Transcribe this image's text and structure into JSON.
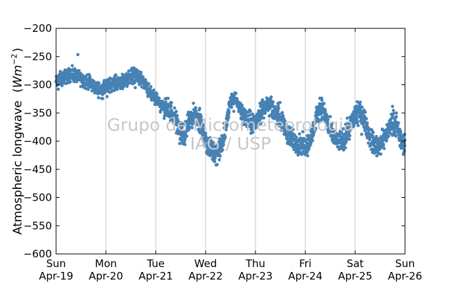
{
  "chart_data": {
    "type": "scatter",
    "title": "",
    "ylabel": "Atmospheric longwave",
    "ylabel_unit_prefix": "(",
    "ylabel_unit_base": "Wm",
    "ylabel_unit_exp": "−2",
    "ylabel_unit_suffix": ")",
    "ylim": [
      -600,
      -200
    ],
    "yticks": [
      "−200",
      "−250",
      "−300",
      "−350",
      "−400",
      "−450",
      "−500",
      "−550",
      "−600"
    ],
    "ytick_values": [
      -200,
      -250,
      -300,
      -350,
      -400,
      -450,
      -500,
      -550,
      -600
    ],
    "x_range": [
      "2015-04-19",
      "2015-04-26"
    ],
    "xticks": [
      {
        "day": "Sun",
        "date": "Apr-19"
      },
      {
        "day": "Mon",
        "date": "Apr-20"
      },
      {
        "day": "Tue",
        "date": "Apr-21"
      },
      {
        "day": "Wed",
        "date": "Apr-22"
      },
      {
        "day": "Thu",
        "date": "Apr-23"
      },
      {
        "day": "Fri",
        "date": "Apr-24"
      },
      {
        "day": "Sat",
        "date": "Apr-25"
      },
      {
        "day": "Sun",
        "date": "Apr-26"
      }
    ],
    "grid": "vertical",
    "marker_color": "#4682b4",
    "series": [
      {
        "hourly_values": [
          [
            -295,
            -292,
            -290,
            -288,
            -286,
            -285,
            -284,
            -283,
            -282,
            -283,
            -285,
            -287,
            -289,
            -291,
            -293,
            -295,
            -297,
            -300,
            -302,
            -305,
            -307,
            -308,
            -308,
            -307
          ],
          [
            -305,
            -302,
            -300,
            -298,
            -297,
            -296,
            -295,
            -294,
            -293,
            -291,
            -289,
            -286,
            -284,
            -282,
            -282,
            -284,
            -287,
            -291,
            -296,
            -302,
            -308,
            -313,
            -318,
            -322
          ],
          [
            -325,
            -330,
            -334,
            -338,
            -340,
            -342,
            -344,
            -346,
            -350,
            -358,
            -368,
            -378,
            -385,
            -388,
            -385,
            -378,
            -368,
            -360,
            -355,
            -353,
            -355,
            -362,
            -375,
            -390
          ],
          [
            -400,
            -408,
            -413,
            -416,
            -418,
            -420,
            -418,
            -414,
            -405,
            -390,
            -370,
            -348,
            -332,
            -325,
            -325,
            -330,
            -338,
            -346,
            -352,
            -358,
            -363,
            -366,
            -368,
            -368
          ],
          [
            -366,
            -360,
            -352,
            -345,
            -340,
            -338,
            -338,
            -340,
            -343,
            -346,
            -350,
            -354,
            -360,
            -368,
            -376,
            -384,
            -390,
            -395,
            -398,
            -400,
            -402,
            -404,
            -406,
            -408
          ],
          [
            -408,
            -405,
            -400,
            -392,
            -380,
            -365,
            -350,
            -340,
            -340,
            -348,
            -360,
            -372,
            -382,
            -390,
            -395,
            -398,
            -400,
            -400,
            -398,
            -394,
            -386,
            -376,
            -368,
            -362
          ],
          [
            -356,
            -352,
            -350,
            -352,
            -358,
            -368,
            -380,
            -392,
            -400,
            -405,
            -408,
            -408,
            -405,
            -400,
            -394,
            -388,
            -380,
            -372,
            -366,
            -366,
            -375,
            -388,
            -398,
            -405
          ]
        ]
      }
    ]
  },
  "watermark": {
    "line1": "Grupo de Micrometeorologia",
    "line2": "IAG / USP"
  }
}
